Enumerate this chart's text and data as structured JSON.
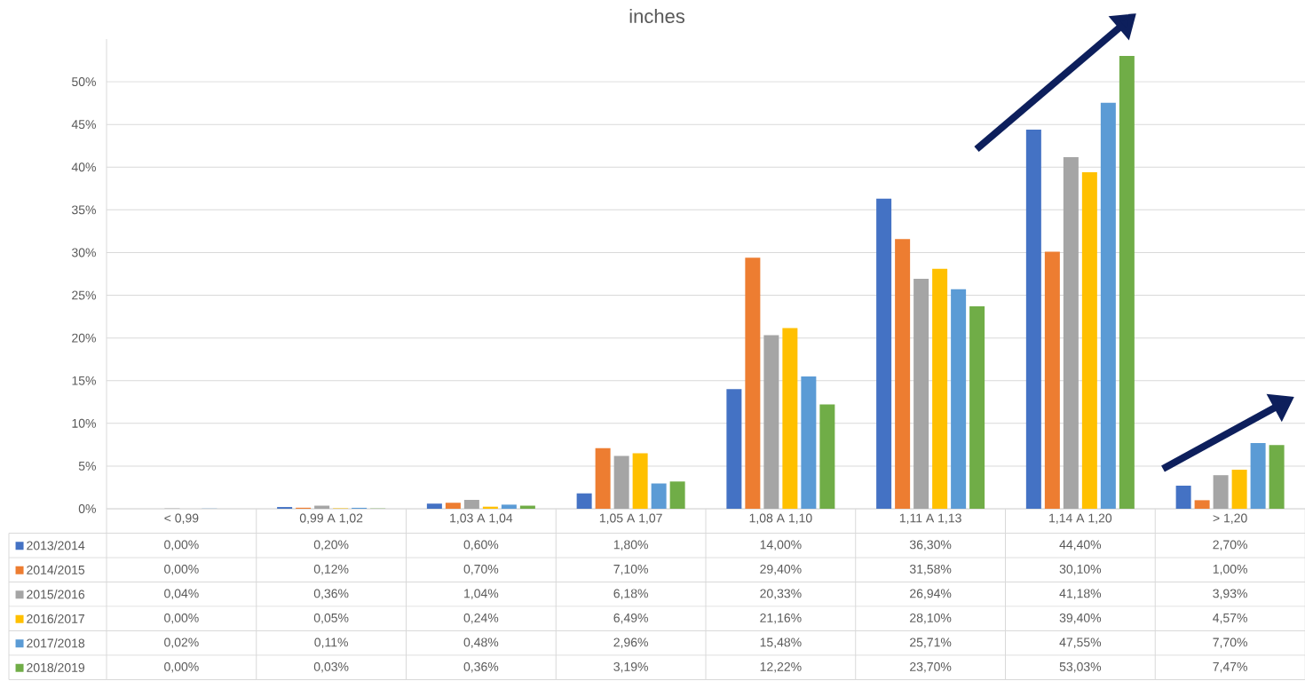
{
  "chart_data": {
    "type": "bar",
    "title": "inches",
    "categories": [
      "< 0,99",
      "0,99 A 1,02",
      "1,03 A 1,04",
      "1,05 A 1,07",
      "1,08 A 1,10",
      "1,11 A 1,13",
      "1,14 A 1,20",
      "> 1,20"
    ],
    "series": [
      {
        "name": "2013/2014",
        "color": "#4472c4",
        "values": [
          0.0,
          0.2,
          0.6,
          1.8,
          14.0,
          36.3,
          44.4,
          2.7
        ],
        "value_labels": [
          "0,00%",
          "0,20%",
          "0,60%",
          "1,80%",
          "14,00%",
          "36,30%",
          "44,40%",
          "2,70%"
        ]
      },
      {
        "name": "2014/2015",
        "color": "#ed7d31",
        "values": [
          0.0,
          0.12,
          0.7,
          7.1,
          29.4,
          31.58,
          30.1,
          1.0
        ],
        "value_labels": [
          "0,00%",
          "0,12%",
          "0,70%",
          "7,10%",
          "29,40%",
          "31,58%",
          "30,10%",
          "1,00%"
        ]
      },
      {
        "name": "2015/2016",
        "color": "#a5a5a5",
        "values": [
          0.04,
          0.36,
          1.04,
          6.18,
          20.33,
          26.94,
          41.18,
          3.93
        ],
        "value_labels": [
          "0,04%",
          "0,36%",
          "1,04%",
          "6,18%",
          "20,33%",
          "26,94%",
          "41,18%",
          "3,93%"
        ]
      },
      {
        "name": "2016/2017",
        "color": "#ffc000",
        "values": [
          0.0,
          0.05,
          0.24,
          6.49,
          21.16,
          28.1,
          39.4,
          4.57
        ],
        "value_labels": [
          "0,00%",
          "0,05%",
          "0,24%",
          "6,49%",
          "21,16%",
          "28,10%",
          "39,40%",
          "4,57%"
        ]
      },
      {
        "name": "2017/2018",
        "color": "#5b9bd5",
        "values": [
          0.02,
          0.11,
          0.48,
          2.96,
          15.48,
          25.71,
          47.55,
          7.7
        ],
        "value_labels": [
          "0,02%",
          "0,11%",
          "0,48%",
          "2,96%",
          "15,48%",
          "25,71%",
          "47,55%",
          "7,70%"
        ]
      },
      {
        "name": "2018/2019",
        "color": "#70ad47",
        "values": [
          0.0,
          0.03,
          0.36,
          3.19,
          12.22,
          23.7,
          53.03,
          7.47
        ],
        "value_labels": [
          "0,00%",
          "0,03%",
          "0,36%",
          "3,19%",
          "12,22%",
          "23,70%",
          "53,03%",
          "7,47%"
        ]
      }
    ],
    "ylim": [
      0,
      55
    ],
    "yticks": [
      {
        "value": 0,
        "label": "0%"
      },
      {
        "value": 5,
        "label": "5%"
      },
      {
        "value": 10,
        "label": "10%"
      },
      {
        "value": 15,
        "label": "15%"
      },
      {
        "value": 20,
        "label": "20%"
      },
      {
        "value": 25,
        "label": "25%"
      },
      {
        "value": 30,
        "label": "30%"
      },
      {
        "value": 35,
        "label": "35%"
      },
      {
        "value": 40,
        "label": "40%"
      },
      {
        "value": 45,
        "label": "45%"
      },
      {
        "value": 50,
        "label": "50%"
      }
    ],
    "grid": "y",
    "legend": "bottom left"
  }
}
